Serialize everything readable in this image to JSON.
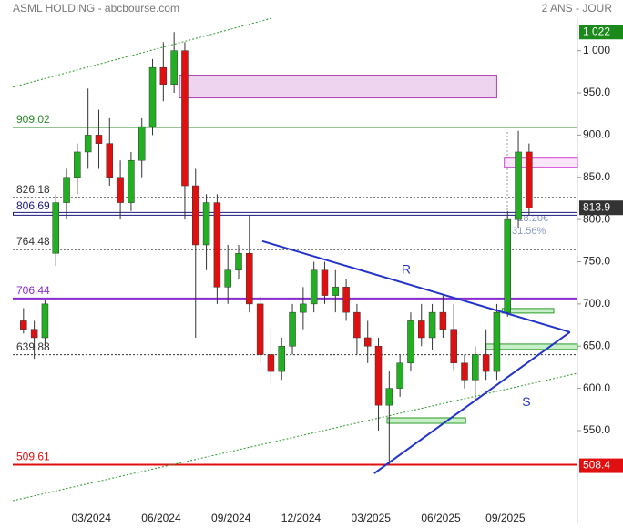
{
  "chart_data": {
    "type": "candlestick",
    "title": "ASML HOLDING - abcbourse.com",
    "subtitle": "2 ANS - JOUR",
    "xlim": [
      0,
      52.5
    ],
    "ylim": [
      440,
      1060
    ],
    "xticks": [
      {
        "value": 7.3,
        "label": "03/2024"
      },
      {
        "value": 13.8,
        "label": "06/2024"
      },
      {
        "value": 20.3,
        "label": "09/2024"
      },
      {
        "value": 26.8,
        "label": "12/2024"
      },
      {
        "value": 33.3,
        "label": "03/2025"
      },
      {
        "value": 39.8,
        "label": "06/2025"
      },
      {
        "value": 45.8,
        "label": "09/2025"
      }
    ],
    "yticks": [
      {
        "value": 550,
        "label": "550.0"
      },
      {
        "value": 600,
        "label": "600.0"
      },
      {
        "value": 650,
        "label": "650.0"
      },
      {
        "value": 700,
        "label": "700.0"
      },
      {
        "value": 750,
        "label": "750.0"
      },
      {
        "value": 800,
        "label": "800.0"
      },
      {
        "value": 850,
        "label": "850.0"
      },
      {
        "value": 900,
        "label": "900.0"
      },
      {
        "value": 950,
        "label": "950.0"
      },
      {
        "value": 1000,
        "label": "1 000"
      }
    ],
    "up_color": "#22b022",
    "down_color": "#dd1111",
    "x": [
      1,
      2,
      3,
      4,
      5,
      6,
      7,
      8,
      9,
      10,
      11,
      12,
      13,
      14,
      15,
      16,
      17,
      18,
      19,
      20,
      21,
      22,
      23,
      24,
      25,
      26,
      27,
      28,
      29,
      30,
      31,
      32,
      33,
      34,
      35,
      36,
      37,
      38,
      39,
      40,
      41,
      42,
      43,
      44,
      45,
      46,
      47,
      48
    ],
    "open": [
      680,
      670,
      660,
      760,
      820,
      850,
      880,
      900,
      890,
      850,
      820,
      870,
      910,
      980,
      960,
      1000,
      840,
      770,
      820,
      720,
      740,
      760,
      700,
      640,
      620,
      650,
      690,
      700,
      740,
      710,
      720,
      690,
      660,
      650,
      580,
      600,
      630,
      680,
      660,
      690,
      670,
      630,
      610,
      640,
      620,
      690,
      800,
      880
    ],
    "high": [
      695,
      680,
      705,
      830,
      860,
      890,
      955,
      930,
      920,
      870,
      880,
      920,
      990,
      1010,
      1022,
      1010,
      860,
      830,
      830,
      770,
      770,
      805,
      710,
      670,
      660,
      700,
      720,
      750,
      750,
      740,
      730,
      700,
      680,
      660,
      620,
      640,
      690,
      700,
      700,
      710,
      700,
      640,
      650,
      670,
      700,
      810,
      905,
      890
    ],
    "low": [
      665,
      635,
      650,
      745,
      800,
      830,
      860,
      860,
      840,
      800,
      810,
      850,
      900,
      940,
      950,
      800,
      660,
      740,
      700,
      700,
      730,
      690,
      630,
      605,
      610,
      640,
      670,
      690,
      700,
      690,
      680,
      640,
      630,
      550,
      510,
      590,
      620,
      650,
      645,
      660,
      620,
      600,
      585,
      610,
      610,
      685,
      790,
      805
    ],
    "close": [
      670,
      660,
      700,
      820,
      850,
      880,
      900,
      890,
      850,
      820,
      870,
      910,
      980,
      960,
      1000,
      840,
      770,
      820,
      720,
      740,
      760,
      700,
      640,
      620,
      650,
      690,
      700,
      740,
      710,
      720,
      690,
      660,
      650,
      580,
      600,
      630,
      680,
      660,
      690,
      670,
      630,
      610,
      640,
      620,
      690,
      800,
      880,
      813.9
    ],
    "levels": [
      {
        "value": 909.02,
        "color": "#2a8a2a",
        "style": "solid"
      },
      {
        "value": 826.18,
        "color": "#333333",
        "style": "dotted"
      },
      {
        "value": 806.69,
        "color": "#1a1a80",
        "style": "double"
      },
      {
        "value": 764.48,
        "color": "#333333",
        "style": "dotted"
      },
      {
        "value": 706.44,
        "color": "#8a2ad0",
        "style": "thick"
      },
      {
        "value": 639.88,
        "color": "#333333",
        "style": "dotted"
      },
      {
        "value": 509.61,
        "color": "#e01010",
        "style": "thick"
      }
    ],
    "badges": [
      {
        "value": 1022,
        "label": "1 022",
        "color": "#1a8a1a"
      },
      {
        "value": 813.9,
        "color": "#333333"
      },
      {
        "value": 508.4,
        "color": "#e01010"
      }
    ],
    "trendlines": [
      {
        "label": "R",
        "x": [
          23.2,
          51.8
        ],
        "y": [
          774.5,
          666.6
        ],
        "color": "#2233cc"
      },
      {
        "label": "S",
        "x": [
          33.6,
          51.8
        ],
        "y": [
          499.3,
          666.6
        ],
        "color": "#2233cc"
      }
    ],
    "channels": [
      {
        "x": [
          0,
          24.2
        ],
        "y": [
          956.8,
          1038.8
        ],
        "color": "#2a9a2a"
      },
      {
        "x": [
          0,
          52.5
        ],
        "y": [
          466.9,
          618.0
        ],
        "color": "#2a9a2a"
      }
    ],
    "zones": [
      {
        "x": [
          15.5,
          45.0
        ],
        "y": [
          944,
          971
        ],
        "fill": "#efd4ef",
        "stroke": "#b040b0"
      },
      {
        "x": [
          45.7,
          52.5
        ],
        "y": [
          861.9,
          872.7
        ],
        "fill": "#fbe6fb",
        "stroke": "#d040d0"
      },
      {
        "x": [
          34.8,
          42.1
        ],
        "y": [
          558.6,
          565.1
        ],
        "fill": "#c8f0c8",
        "stroke": "#2a9a2a"
      },
      {
        "x": [
          44.0,
          52.5
        ],
        "y": [
          646.1,
          652.5
        ],
        "fill": "#c8f0c8",
        "stroke": "#2a9a2a"
      },
      {
        "x": [
          45.5,
          50.3
        ],
        "y": [
          689.2,
          694.6
        ],
        "fill": "#c8f0c8",
        "stroke": "#2a9a2a"
      }
    ],
    "annotations": [
      "+18.20€",
      "31.56%"
    ]
  }
}
